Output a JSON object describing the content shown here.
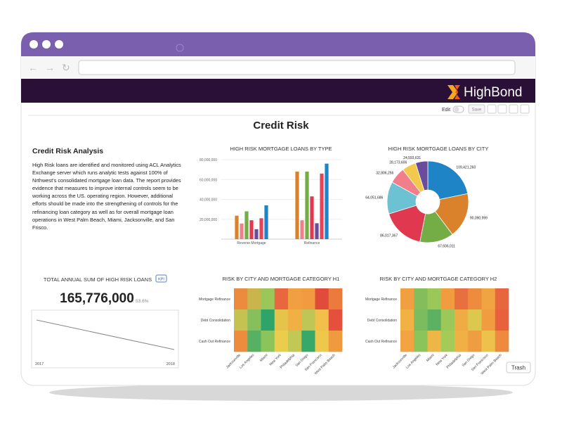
{
  "header": {
    "logo": "HighBond"
  },
  "toolbar": {
    "edit": "Edit",
    "save": "Save"
  },
  "title": "Credit Risk",
  "analysis": {
    "title": "Credit Risk Analysis",
    "body": "High Risk loans are identified and monitored using ACL Analytics Exchange server which runs analytic tests against 100% of Nrthwest's consolidated mortgage loan data. The report provides evidence that measures to improve internal controls seem to be working across the US. operating region. However, additional efforts should be made into the strengthening of controls for the refinancing loan category as well as for overall mortgage loan operations in West Palm Beach, Miami, Jacksonville, and San Frisco."
  },
  "kpi": {
    "title": "TOTAL ANNUAL SUM OF HIGH RISK LOANS",
    "badge": "KPI",
    "value": "165,776,000",
    "change": "↓ 53.6%",
    "x_labels": [
      "2017",
      "2018"
    ]
  },
  "chart_data": [
    {
      "type": "bar",
      "title": "HIGH RISK MORTGAGE LOANS BY TYPE",
      "categories": [
        "Reverse Mortgage",
        "Refinance"
      ],
      "series": [
        {
          "color": "#d9822b",
          "values": [
            23600000,
            68000000
          ]
        },
        {
          "color": "#f07f8a",
          "values": [
            15700000,
            19000000
          ]
        },
        {
          "color": "#74ac46",
          "values": [
            28000000,
            68000000
          ]
        },
        {
          "color": "#e0384e",
          "values": [
            19000000,
            43000000
          ]
        },
        {
          "color": "#6a4c9c",
          "values": [
            10000000,
            16000000
          ]
        },
        {
          "color": "#e8425a",
          "values": [
            21000000,
            66000000
          ]
        },
        {
          "color": "#1f84c6",
          "values": [
            34000000,
            76000000
          ]
        }
      ],
      "ylim": [
        0,
        80000000
      ],
      "yticks": [
        {
          "value": 20000000,
          "label": "20,000,000"
        },
        {
          "value": 40000000,
          "label": "40,000,000"
        },
        {
          "value": 60000000,
          "label": "60,000,000"
        },
        {
          "value": 80000000,
          "label": "80,000,000"
        }
      ],
      "grid": true
    },
    {
      "type": "pie",
      "title": "HIGH RISK MORTGAGE LOANS BY CITY",
      "values": [
        109421260,
        90090999,
        67606011,
        86017367,
        64051686,
        32806256,
        28173606,
        24593631
      ],
      "value_labels": [
        "109,421,260",
        "90,090,999",
        "67,606,011",
        "86,017,367",
        "64,051,686",
        "32,806,256",
        "28,173,606",
        "24,593,631"
      ],
      "colors": [
        "#1f84c6",
        "#d9822b",
        "#74ac46",
        "#e0384e",
        "#6cc1d2",
        "#f07f8a",
        "#f2c94c",
        "#6a4c9c"
      ]
    },
    {
      "type": "heatmap",
      "title": "RISK BY CITY AND MORTGAGE CATEGORY H1",
      "x_categories": [
        "Jacksonville",
        "Los Angeles",
        "Miami",
        "New York",
        "Philadelphia",
        "San Diego",
        "San Francisco",
        "West Palm Beach"
      ],
      "y_categories": [
        "Mortgage Refinance",
        "Debt Consolidation",
        "Cash Out Refinance"
      ],
      "colors": [
        [
          "#ec8a3e",
          "#c9b54c",
          "#9bc65a",
          "#e8673e",
          "#f0a040",
          "#f19a40",
          "#e14b3a",
          "#eb7a3c"
        ],
        [
          "#c5c252",
          "#86bf5c",
          "#2ea36a",
          "#e6c44a",
          "#f0b044",
          "#bfc656",
          "#f2c04a",
          "#e4503c"
        ],
        [
          "#ee8c3e",
          "#58b062",
          "#8cc45c",
          "#eccc4c",
          "#c2c854",
          "#38a86a",
          "#eec84a",
          "#f09a40"
        ]
      ]
    },
    {
      "type": "heatmap",
      "title": "RISK BY CITY AND MORTGAGE CATEGORY H2",
      "x_categories": [
        "Jacksonville",
        "Los Angeles",
        "Miami",
        "New York",
        "Philadelphia",
        "San Diego",
        "San Francisco",
        "West Palm Beach"
      ],
      "y_categories": [
        "Mortgage Refinance",
        "Debt Consolidation",
        "Cash Out Refinance"
      ],
      "colors": [
        [
          "#f0a040",
          "#84be5c",
          "#9cc85a",
          "#f29c40",
          "#e8703e",
          "#ee8c3e",
          "#f0a442",
          "#e8663e"
        ],
        [
          "#f0b244",
          "#7cbc5e",
          "#5cb262",
          "#9cc85a",
          "#f0ac44",
          "#dcc84e",
          "#f29c40",
          "#e8603c"
        ],
        [
          "#f2a442",
          "#8cc45c",
          "#eeb646",
          "#a4ca58",
          "#f0b044",
          "#ee9e40",
          "#ecc24a",
          "#ee8a3e"
        ]
      ]
    }
  ],
  "trash": "Trash"
}
